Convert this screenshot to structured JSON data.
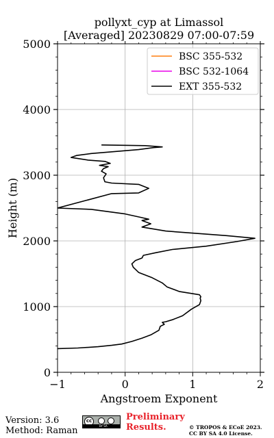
{
  "chart_data": {
    "type": "line",
    "title_line1": "pollyxt_cyp at Limassol",
    "title_line2": "[Averaged] 20230829 07:00-07:59",
    "xlabel": "Angstroem Exponent",
    "ylabel": "Height (m)",
    "xlim": [
      -1,
      2
    ],
    "ylim": [
      0,
      5000
    ],
    "xticks": [
      -1,
      0,
      1,
      2
    ],
    "xtick_labels": [
      "−1",
      "0",
      "1",
      "2"
    ],
    "yticks": [
      0,
      1000,
      2000,
      3000,
      4000,
      5000
    ],
    "ytick_labels": [
      "0",
      "1000",
      "2000",
      "3000",
      "4000",
      "5000"
    ],
    "grid": true,
    "legend_position": "top-right",
    "series": [
      {
        "name": "BSC 355-532",
        "color": "#ff7f0e",
        "x": [],
        "y": []
      },
      {
        "name": "BSC 532-1064",
        "color": "#e800e8",
        "x": [],
        "y": []
      },
      {
        "name": "EXT 355-532",
        "color": "#000000",
        "x": [
          -1.0,
          -0.7,
          -0.4,
          -0.2,
          -0.05,
          0.1,
          0.25,
          0.38,
          0.5,
          0.52,
          0.58,
          0.55,
          0.6,
          0.7,
          0.85,
          0.98,
          1.1,
          1.12,
          1.11,
          1.12,
          1.1,
          0.8,
          0.62,
          0.55,
          0.4,
          0.2,
          0.12,
          0.1,
          0.15,
          0.25,
          0.27,
          0.45,
          0.7,
          1.2,
          1.65,
          1.92,
          1.5,
          0.6,
          0.25,
          0.38,
          0.25,
          0.35,
          0.22,
          0.0,
          -0.5,
          -1.0,
          -0.2,
          0.2,
          0.35,
          0.2,
          -0.2,
          -0.3,
          -0.32,
          -0.28,
          -0.35,
          -0.32,
          -0.25,
          -0.38,
          -0.22,
          -0.3,
          -0.55,
          -0.8,
          -0.72,
          -0.5,
          0.2,
          0.42,
          0.55,
          0.3,
          -0.35
        ],
        "y": [
          360,
          370,
          390,
          410,
          430,
          470,
          520,
          570,
          640,
          700,
          730,
          760,
          770,
          800,
          860,
          960,
          1030,
          1090,
          1130,
          1150,
          1180,
          1230,
          1300,
          1360,
          1440,
          1520,
          1600,
          1650,
          1700,
          1740,
          1780,
          1820,
          1870,
          1920,
          1990,
          2040,
          2080,
          2150,
          2210,
          2260,
          2310,
          2330,
          2360,
          2410,
          2480,
          2500,
          2720,
          2730,
          2800,
          2860,
          2880,
          2900,
          2960,
          3020,
          3060,
          3100,
          3130,
          3150,
          3180,
          3210,
          3230,
          3270,
          3300,
          3330,
          3390,
          3420,
          3430,
          3450,
          3460
        ]
      }
    ]
  },
  "footer": {
    "version": "Version: 3.6",
    "method": "Method: Raman",
    "preliminary_line1": "Preliminary",
    "preliminary_line2": "Results.",
    "copyright_line1": "© TROPOS & ECoE 2023.",
    "copyright_line2": "CC BY SA 4.0 License.",
    "badge_text": "BY SA"
  }
}
